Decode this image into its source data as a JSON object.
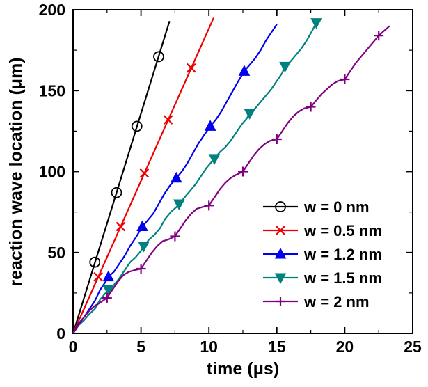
{
  "chart_data": {
    "type": "line",
    "title": "",
    "xlabel": "time (μs)",
    "ylabel": "reaction wave location (μm)",
    "xlim": [
      0,
      25
    ],
    "ylim": [
      0,
      200
    ],
    "xticks": [
      0,
      5,
      10,
      15,
      20,
      25
    ],
    "yticks": [
      0,
      50,
      100,
      150,
      200
    ],
    "x_minor_step": 2.5,
    "y_minor_step": 25,
    "grid": false,
    "legend_position": "inside-lower-right",
    "frame_color": "#000000",
    "series": [
      {
        "name": "w = 0 nm",
        "color": "#000000",
        "marker": "circle-open",
        "line": [
          [
            0,
            0
          ],
          [
            7.1,
            193
          ]
        ],
        "markers": [
          [
            1.6,
            44
          ],
          [
            3.2,
            87
          ],
          [
            4.7,
            128
          ],
          [
            6.3,
            171
          ]
        ]
      },
      {
        "name": "w = 0.5 nm",
        "color": "#ee0000",
        "marker": "x",
        "line": [
          [
            0,
            0
          ],
          [
            10.35,
            195
          ]
        ],
        "markers": [
          [
            1.85,
            35
          ],
          [
            3.5,
            66
          ],
          [
            5.25,
            99
          ],
          [
            7.0,
            132
          ],
          [
            8.7,
            164
          ]
        ]
      },
      {
        "name": "w = 1.2 nm",
        "color": "#0000ee",
        "marker": "triangle-up",
        "line": [
          [
            0,
            0
          ],
          [
            0.4,
            6
          ],
          [
            0.8,
            10
          ],
          [
            1.2,
            15
          ],
          [
            1.6,
            20
          ],
          [
            2.0,
            27
          ],
          [
            2.4,
            32
          ],
          [
            2.6,
            35
          ],
          [
            3.0,
            38
          ],
          [
            3.4,
            43
          ],
          [
            3.8,
            48
          ],
          [
            4.2,
            54
          ],
          [
            4.6,
            59
          ],
          [
            5.1,
            66
          ],
          [
            5.5,
            70
          ],
          [
            5.9,
            74
          ],
          [
            6.3,
            80
          ],
          [
            6.7,
            86
          ],
          [
            7.1,
            91
          ],
          [
            7.6,
            96
          ],
          [
            8.0,
            100
          ],
          [
            8.4,
            105
          ],
          [
            8.8,
            111
          ],
          [
            9.2,
            117
          ],
          [
            9.6,
            122
          ],
          [
            10.1,
            128
          ],
          [
            10.5,
            132
          ],
          [
            10.9,
            137
          ],
          [
            11.3,
            143
          ],
          [
            11.7,
            149
          ],
          [
            12.1,
            155
          ],
          [
            12.6,
            162
          ],
          [
            13.0,
            166
          ],
          [
            13.4,
            170
          ],
          [
            13.8,
            175
          ],
          [
            14.2,
            181
          ],
          [
            14.6,
            186
          ],
          [
            15.0,
            191
          ]
        ],
        "markers": [
          [
            2.6,
            35
          ],
          [
            5.1,
            66
          ],
          [
            7.6,
            96
          ],
          [
            10.1,
            128
          ],
          [
            12.6,
            162
          ]
        ]
      },
      {
        "name": "w = 1.5 nm",
        "color": "#008080",
        "marker": "triangle-down",
        "line": [
          [
            0,
            0
          ],
          [
            0.4,
            5
          ],
          [
            0.8,
            8
          ],
          [
            1.2,
            12
          ],
          [
            1.6,
            15
          ],
          [
            2.0,
            21
          ],
          [
            2.4,
            25
          ],
          [
            2.6,
            27
          ],
          [
            3.0,
            30
          ],
          [
            3.4,
            34
          ],
          [
            3.8,
            39
          ],
          [
            4.2,
            44
          ],
          [
            4.6,
            47
          ],
          [
            5.0,
            51
          ],
          [
            5.2,
            54
          ],
          [
            5.6,
            58
          ],
          [
            6.0,
            61
          ],
          [
            6.4,
            65
          ],
          [
            6.8,
            71
          ],
          [
            7.2,
            75
          ],
          [
            7.6,
            78
          ],
          [
            7.8,
            80
          ],
          [
            8.2,
            84
          ],
          [
            8.6,
            88
          ],
          [
            9.0,
            92
          ],
          [
            9.4,
            97
          ],
          [
            9.8,
            102
          ],
          [
            10.2,
            106
          ],
          [
            10.4,
            108
          ],
          [
            10.8,
            112
          ],
          [
            11.2,
            115
          ],
          [
            11.6,
            119
          ],
          [
            12.0,
            124
          ],
          [
            12.4,
            129
          ],
          [
            12.8,
            133
          ],
          [
            13.0,
            136
          ],
          [
            13.4,
            139
          ],
          [
            13.8,
            143
          ],
          [
            14.2,
            147
          ],
          [
            14.6,
            151
          ],
          [
            15.0,
            156
          ],
          [
            15.4,
            161
          ],
          [
            15.6,
            165
          ],
          [
            16.0,
            168
          ],
          [
            16.4,
            172
          ],
          [
            16.8,
            176
          ],
          [
            17.2,
            181
          ],
          [
            17.6,
            187
          ],
          [
            17.9,
            192
          ]
        ],
        "markers": [
          [
            2.6,
            27
          ],
          [
            5.2,
            54
          ],
          [
            7.8,
            80
          ],
          [
            10.4,
            108
          ],
          [
            13.0,
            136
          ],
          [
            15.6,
            165
          ],
          [
            17.9,
            192
          ]
        ]
      },
      {
        "name": "w = 2 nm",
        "color": "#800080",
        "marker": "plus",
        "line": [
          [
            0,
            0
          ],
          [
            0.4,
            5
          ],
          [
            0.8,
            10
          ],
          [
            1.2,
            14
          ],
          [
            1.6,
            17
          ],
          [
            2.0,
            19
          ],
          [
            2.5,
            22
          ],
          [
            2.9,
            27
          ],
          [
            3.3,
            32
          ],
          [
            3.7,
            36
          ],
          [
            4.1,
            38
          ],
          [
            4.5,
            39
          ],
          [
            5.0,
            40
          ],
          [
            5.4,
            45
          ],
          [
            5.8,
            50
          ],
          [
            6.2,
            54
          ],
          [
            6.6,
            57
          ],
          [
            7.0,
            58
          ],
          [
            7.5,
            60
          ],
          [
            7.9,
            65
          ],
          [
            8.3,
            70
          ],
          [
            8.7,
            74
          ],
          [
            9.1,
            77
          ],
          [
            9.5,
            78
          ],
          [
            10.0,
            79
          ],
          [
            10.4,
            84
          ],
          [
            10.8,
            89
          ],
          [
            11.2,
            93
          ],
          [
            11.6,
            96
          ],
          [
            12.0,
            98
          ],
          [
            12.5,
            100
          ],
          [
            12.9,
            105
          ],
          [
            13.3,
            110
          ],
          [
            13.7,
            114
          ],
          [
            14.1,
            117
          ],
          [
            14.5,
            119
          ],
          [
            15.0,
            120
          ],
          [
            15.4,
            125
          ],
          [
            15.8,
            130
          ],
          [
            16.2,
            134
          ],
          [
            16.6,
            137
          ],
          [
            17.0,
            139
          ],
          [
            17.5,
            140
          ],
          [
            17.9,
            144
          ],
          [
            18.3,
            148
          ],
          [
            18.7,
            151
          ],
          [
            19.1,
            154
          ],
          [
            19.5,
            156
          ],
          [
            20.0,
            157
          ],
          [
            20.4,
            162
          ],
          [
            20.8,
            167
          ],
          [
            21.2,
            171
          ],
          [
            21.6,
            175
          ],
          [
            22.0,
            179
          ],
          [
            22.5,
            184
          ],
          [
            22.9,
            187
          ],
          [
            23.3,
            190
          ]
        ],
        "markers": [
          [
            2.5,
            22
          ],
          [
            5.0,
            40
          ],
          [
            7.5,
            60
          ],
          [
            10.0,
            79
          ],
          [
            12.5,
            100
          ],
          [
            15.0,
            120
          ],
          [
            17.5,
            140
          ],
          [
            20.0,
            157
          ],
          [
            22.5,
            184
          ]
        ]
      }
    ]
  }
}
